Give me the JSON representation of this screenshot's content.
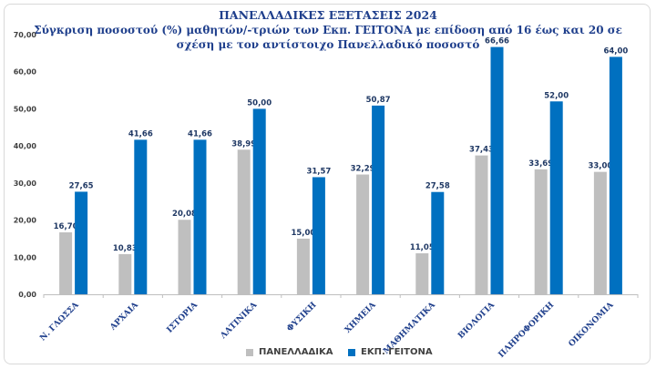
{
  "chart_data": {
    "type": "bar",
    "title_lines": [
      "ΠΑΝΕΛΛΑΔΙΚΕΣ ΕΞΕΤΑΣΕΙΣ 2024",
      "Σύγκριση ποσοστού (%) μαθητών/-τριών των Εκπ. ΓΕΙΤΟΝΑ με επίδοση από 16 έως και 20 σε",
      "σχέση με τον αντίστοιχο Πανελλαδικό ποσοστό"
    ],
    "categories": [
      "Ν. ΓΛΩΣΣΑ",
      "ΑΡΧΑΙΑ",
      "ΙΣΤΟΡΙΑ",
      "ΛΑΤΙΝΙΚΑ",
      "ΦΥΣΙΚΗ",
      "ΧΗΜΕΙΑ",
      "ΜΑΘΗΜΑΤΙΚΑ",
      "ΒΙΟΛΟΓΙΑ",
      "ΠΛΗΡΟΦΟΡΙΚΗ",
      "ΟΙΚΟΝΟΜΙΑ"
    ],
    "series": [
      {
        "name": "ΠΑΝΕΛΛΑΔΙΚΑ",
        "color": "#bfbfbf",
        "values": [
          16.7,
          10.83,
          20.08,
          38.99,
          15.0,
          32.29,
          11.05,
          37.43,
          33.69,
          33.0
        ],
        "labels": [
          "16,70",
          "10,83",
          "20,08",
          "38,99",
          "15,00",
          "32,29",
          "11,05",
          "37,43",
          "33,69",
          "33,00"
        ]
      },
      {
        "name": "ΕΚΠ. ΓΕΙΤΟΝΑ",
        "color": "#0070c0",
        "values": [
          27.65,
          41.66,
          41.66,
          50.0,
          31.57,
          50.87,
          27.58,
          66.66,
          52.0,
          64.0
        ],
        "labels": [
          "27,65",
          "41,66",
          "41,66",
          "50,00",
          "31,57",
          "50,87",
          "27,58",
          "66,66",
          "52,00",
          "64,00"
        ]
      }
    ],
    "ylim": [
      0,
      70
    ],
    "yticks": [
      0,
      10,
      20,
      30,
      40,
      50,
      60,
      70
    ],
    "ytick_labels": [
      "0,00",
      "10,00",
      "20,00",
      "30,00",
      "40,00",
      "50,00",
      "60,00",
      "70,00"
    ],
    "grid": false,
    "legend_position": "bottom"
  }
}
